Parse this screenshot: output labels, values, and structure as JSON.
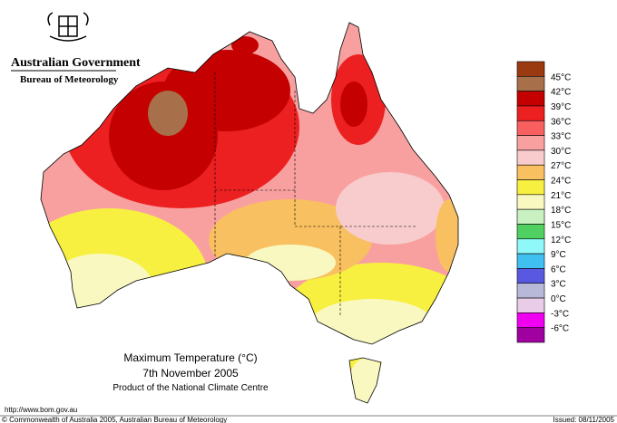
{
  "header": {
    "government": "Australian Government",
    "agency": "Bureau of Meteorology"
  },
  "legend": {
    "labels": [
      "45°C",
      "42°C",
      "39°C",
      "36°C",
      "33°C",
      "30°C",
      "27°C",
      "24°C",
      "21°C",
      "18°C",
      "15°C",
      "12°C",
      "9°C",
      "6°C",
      "3°C",
      "0°C",
      "-3°C",
      "-6°C"
    ],
    "colors": [
      "#9a3a10",
      "#a8704a",
      "#c40000",
      "#ec2020",
      "#f86060",
      "#f8a0a0",
      "#f8cccc",
      "#f8c060",
      "#f8f040",
      "#f8f8c0",
      "#c8f0c0",
      "#50d060",
      "#90f8f8",
      "#40c0f0",
      "#5858e0",
      "#b8b8d8",
      "#e8cce8",
      "#f000f0",
      "#a000a0"
    ]
  },
  "caption": {
    "title": "Maximum Temperature (°C)",
    "date": "7th November 2005",
    "product": "Product of the National Climate Centre"
  },
  "footer": {
    "url": "http://www.bom.gov.au",
    "copyright": "© Commonwealth of Australia 2005, Australian Bureau of Meteorology",
    "issued": "Issued: 08/11/2005"
  }
}
